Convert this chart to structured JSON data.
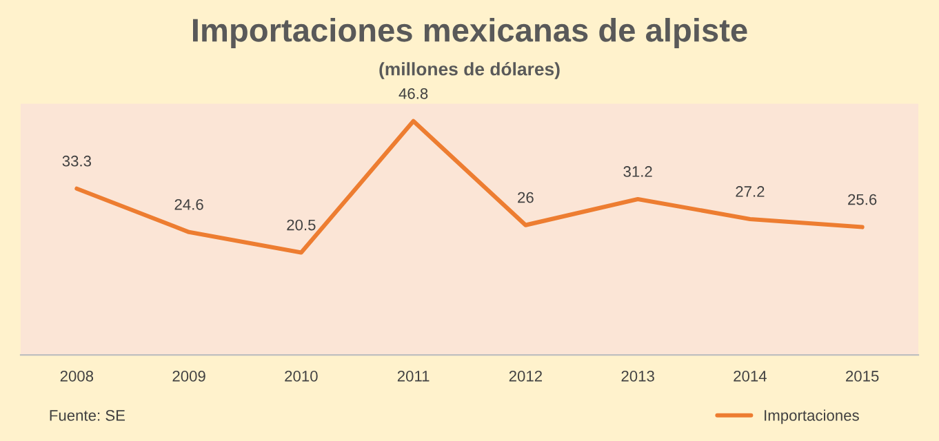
{
  "chart_data": {
    "type": "line",
    "title": "Importaciones mexicanas de alpiste",
    "subtitle": "(millones de dólares)",
    "categories": [
      "2008",
      "2009",
      "2010",
      "2011",
      "2012",
      "2013",
      "2014",
      "2015"
    ],
    "series": [
      {
        "name": "Importaciones",
        "color": "#ed7d31",
        "values": [
          33.3,
          24.6,
          20.5,
          46.8,
          26,
          31.2,
          27.2,
          25.6
        ]
      }
    ],
    "data_labels": true,
    "grid": false,
    "legend": "bottom right",
    "marker": "none",
    "line_style": "solid",
    "annotations": [
      "Fuente: SE"
    ]
  }
}
